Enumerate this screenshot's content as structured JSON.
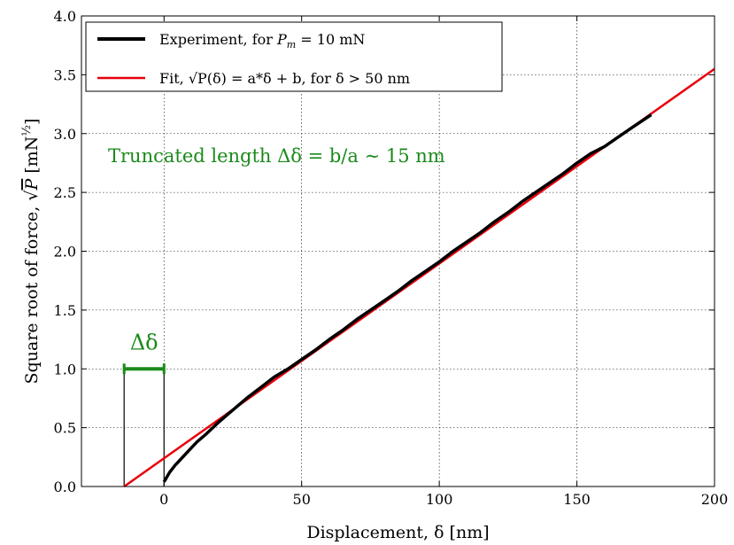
{
  "chart_data": {
    "type": "line",
    "xlabel": "Displacement, δ [nm]",
    "ylabel": "Square root of force, √P [mN^½]",
    "xlim": [
      -30,
      200
    ],
    "ylim": [
      0,
      4.0
    ],
    "xticks": [
      0,
      50,
      100,
      150,
      200
    ],
    "yticks": [
      0.0,
      0.5,
      1.0,
      1.5,
      2.0,
      2.5,
      3.0,
      3.5,
      4.0
    ],
    "grid": true,
    "legend_position": "top-left",
    "series": [
      {
        "name": "Experiment, for P_m = 10 mN",
        "color": "#000000",
        "x": [
          0,
          1,
          2,
          4,
          6,
          8,
          10,
          12,
          15,
          20,
          25,
          30,
          35,
          40,
          45,
          50,
          55,
          60,
          65,
          70,
          75,
          80,
          85,
          90,
          95,
          100,
          105,
          110,
          115,
          120,
          125,
          130,
          135,
          140,
          145,
          150,
          155,
          160,
          165,
          170,
          177
        ],
        "y": [
          0.04,
          0.08,
          0.12,
          0.18,
          0.23,
          0.28,
          0.33,
          0.38,
          0.44,
          0.55,
          0.65,
          0.75,
          0.84,
          0.93,
          1.0,
          1.08,
          1.16,
          1.25,
          1.33,
          1.42,
          1.5,
          1.58,
          1.66,
          1.75,
          1.83,
          1.91,
          2.0,
          2.08,
          2.16,
          2.25,
          2.33,
          2.42,
          2.5,
          2.58,
          2.66,
          2.75,
          2.83,
          2.89,
          2.97,
          3.05,
          3.16
        ]
      },
      {
        "name": "Fit, √P(δ) = a*δ + b, for δ > 50 nm",
        "color": "#e8000b",
        "x": [
          -14.5,
          200
        ],
        "y": [
          0.0,
          3.55
        ]
      }
    ],
    "annotations": {
      "truncated_text": "Truncated length Δδ = b/a ∼ 15 nm",
      "delta_label": "Δδ",
      "delta_bar_x": [
        -14.5,
        0
      ],
      "delta_bar_y": 1.0,
      "annotation_color": "#1a8a1a"
    }
  },
  "legend": {
    "items": [
      {
        "prefix": "Experiment, for ",
        "var": "P",
        "sub": "m",
        "suffix": " = 10 mN"
      },
      {
        "prefix": "Fit, ",
        "sqrt": "√",
        "expr": "P(δ) = a*δ + b, for δ > 50 nm"
      }
    ]
  },
  "axes": {
    "xlabel_text": "Displacement, δ [nm]",
    "ylabel_prefix": "Square root of force, ",
    "ylabel_sqrt": "√",
    "ylabel_var": "P",
    "ylabel_unit": " [mN",
    "ylabel_exp": "½",
    "ylabel_close": "]"
  }
}
